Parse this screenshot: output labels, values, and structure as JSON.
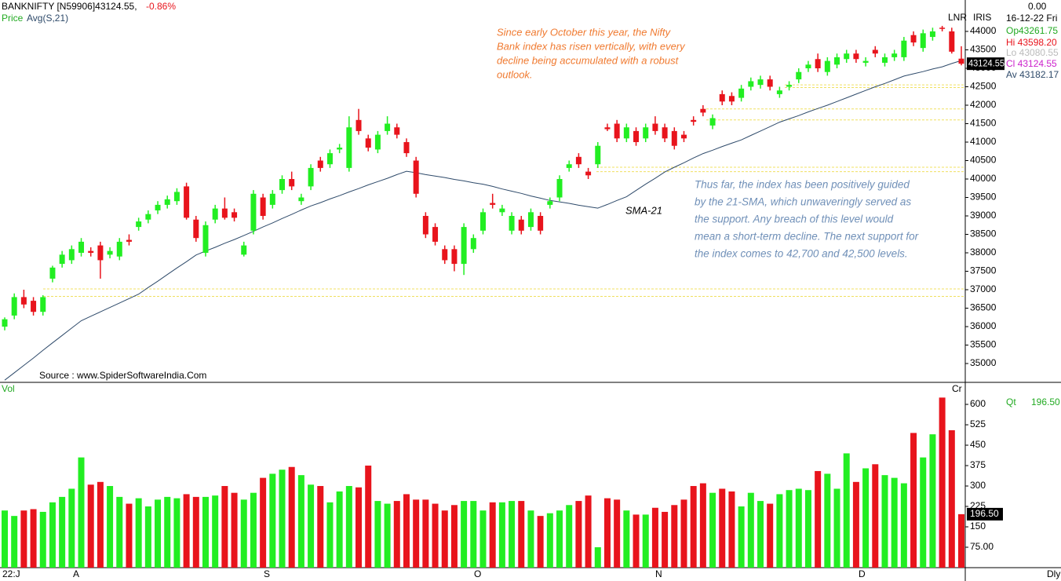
{
  "chart_data": [
    {
      "type": "candlestick",
      "title": "BANKNIFTY [N59906]43124.55,",
      "change": "-0.86%",
      "legend": "Price",
      "sma_label": "Avg(S,21)",
      "sma_name": "SMA-21",
      "source": "Source : www.SpiderSoftwareIndia.Com",
      "marker": "LNR",
      "annotations": [
        [
          "Since early October this year, the Nifty",
          "Bank index has risen vertically, with every",
          "decline being accumulated with a robust",
          "outlook."
        ],
        [
          "Thus far, the index has been positively guided",
          "by the 21-SMA, which unwaveringly served as",
          "the support. Any breach of this level would",
          "mean a short-term decline. The next support for",
          "the index comes to 42,700 and 42,500 levels."
        ]
      ],
      "info": {
        "top": "0.00",
        "name": "IRIS",
        "date": "16-12-22 Fri",
        "op": "Op43261.75",
        "hi": "Hi 43598.20",
        "lo": "Lo 43080.55",
        "cl": "Cl 43124.55",
        "av": "Av 43182.17"
      },
      "x_labels": [
        "22:J",
        "A",
        "S",
        "O",
        "N",
        "D"
      ],
      "period": "Dly",
      "up_color": "#22ee22",
      "down_color": "#e8141c",
      "sma_color": "#2e4a6a",
      "open": [
        36000,
        36300,
        36800,
        36700,
        36400,
        37300,
        37700,
        37800,
        38000,
        38050,
        38200,
        37950,
        37900,
        38350,
        38700,
        38900,
        39150,
        39300,
        39400,
        39800,
        38900,
        38000,
        38900,
        39200,
        39100,
        37950,
        38600,
        39500,
        39300,
        39700,
        40000,
        39400,
        39800,
        40500,
        40400,
        40800,
        40300,
        41600,
        41100,
        40800,
        41300,
        41400,
        41000,
        40500,
        39000,
        38700,
        38100,
        38100,
        37700,
        38100,
        38600,
        39350,
        39100,
        38600,
        38900,
        38700,
        39000,
        39300,
        39500,
        40300,
        40600,
        40200,
        40400,
        41400,
        41500,
        41100,
        41300,
        41100,
        41500,
        41400,
        41300,
        41200,
        41600,
        41900,
        41450,
        42300,
        42250,
        42200,
        42500,
        42550,
        42700,
        42300,
        42500,
        42700,
        43000,
        43250,
        42900,
        43100,
        43250,
        43400,
        43150,
        43500,
        43150,
        43300,
        43300,
        43900,
        43550,
        43850,
        44100,
        44000,
        43261.75
      ],
      "high": [
        36250,
        36900,
        37000,
        36800,
        36850,
        37650,
        38050,
        38200,
        38400,
        38150,
        38300,
        38150,
        38400,
        38500,
        38950,
        39150,
        39400,
        39550,
        39750,
        39900,
        39000,
        38850,
        39300,
        39500,
        39200,
        38300,
        39700,
        39600,
        39700,
        40100,
        40200,
        39600,
        40400,
        40600,
        40800,
        40950,
        41700,
        41900,
        41200,
        41300,
        41700,
        41500,
        41100,
        40600,
        39100,
        38800,
        38200,
        38200,
        38800,
        38500,
        39200,
        39600,
        39300,
        39100,
        39000,
        39200,
        39100,
        39500,
        40100,
        40500,
        40700,
        40300,
        41000,
        41500,
        41600,
        41500,
        41400,
        41500,
        41700,
        41500,
        41400,
        41300,
        41700,
        42000,
        41750,
        42400,
        42350,
        42550,
        42750,
        42800,
        42800,
        42500,
        42650,
        43000,
        43200,
        43400,
        43300,
        43400,
        43500,
        43500,
        43300,
        43600,
        43400,
        43500,
        43850,
        44000,
        44050,
        44100,
        44150,
        44100,
        43598.2
      ],
      "low": [
        35900,
        36200,
        36500,
        36300,
        36300,
        37200,
        37600,
        37700,
        37900,
        37900,
        37300,
        37850,
        37800,
        38200,
        38600,
        38800,
        39050,
        39200,
        39300,
        38900,
        38300,
        37900,
        38800,
        38900,
        38850,
        37900,
        38500,
        38900,
        39200,
        39600,
        39700,
        39300,
        39700,
        40200,
        40300,
        40700,
        40200,
        41200,
        40750,
        40700,
        41200,
        41100,
        40600,
        39500,
        38400,
        38200,
        37700,
        37500,
        37400,
        38000,
        38500,
        39200,
        39000,
        38500,
        38500,
        38600,
        38500,
        39200,
        39400,
        40200,
        40300,
        40000,
        40300,
        41300,
        41000,
        41000,
        40900,
        41000,
        41200,
        41000,
        40800,
        41000,
        41450,
        41700,
        41350,
        42000,
        42000,
        42100,
        42400,
        42450,
        42400,
        42200,
        42400,
        42600,
        42900,
        42900,
        42800,
        43000,
        43150,
        43150,
        43050,
        43300,
        43050,
        43200,
        43200,
        43600,
        43450,
        43750,
        44000,
        43400,
        43080.55
      ],
      "close": [
        36200,
        36800,
        36600,
        36400,
        36800,
        37600,
        37950,
        38100,
        38300,
        38000,
        37800,
        38050,
        38300,
        38300,
        38850,
        39050,
        39300,
        39450,
        39650,
        38950,
        38400,
        38750,
        39200,
        38950,
        38950,
        38200,
        39600,
        39000,
        39600,
        40000,
        39800,
        39500,
        40300,
        40300,
        40700,
        40850,
        41400,
        41300,
        40850,
        41200,
        41500,
        41200,
        40700,
        39600,
        38500,
        38300,
        37800,
        37700,
        38700,
        38400,
        39100,
        39300,
        39200,
        39000,
        38600,
        39100,
        38600,
        39400,
        40000,
        40400,
        40400,
        40100,
        40900,
        41350,
        41100,
        41400,
        41000,
        41400,
        41300,
        41100,
        40900,
        41100,
        41550,
        41800,
        41650,
        42100,
        42100,
        42450,
        42650,
        42700,
        42500,
        42400,
        42550,
        42900,
        43100,
        43000,
        43200,
        43300,
        43400,
        43250,
        43200,
        43400,
        43300,
        43400,
        43750,
        43700,
        43950,
        44000,
        44080,
        43450,
        43124.55
      ],
      "sma": [
        34550,
        34750,
        34950,
        35150,
        35360,
        35560,
        35760,
        35960,
        36160,
        36280,
        36400,
        36520,
        36640,
        36760,
        36880,
        37060,
        37230,
        37410,
        37590,
        37760,
        37940,
        38050,
        38150,
        38260,
        38360,
        38470,
        38580,
        38700,
        38810,
        38930,
        39040,
        39160,
        39270,
        39360,
        39460,
        39550,
        39650,
        39740,
        39840,
        39930,
        40020,
        40120,
        40210,
        40170,
        40120,
        40080,
        40040,
        39990,
        39950,
        39900,
        39860,
        39800,
        39730,
        39670,
        39610,
        39540,
        39480,
        39420,
        39380,
        39340,
        39290,
        39250,
        39210,
        39310,
        39420,
        39520,
        39690,
        39860,
        40020,
        40190,
        40320,
        40440,
        40570,
        40690,
        40780,
        40880,
        40970,
        41060,
        41180,
        41300,
        41420,
        41540,
        41630,
        41720,
        41820,
        41910,
        42000,
        42100,
        42200,
        42300,
        42400,
        42500,
        42590,
        42690,
        42790,
        42850,
        42910,
        42980,
        43040,
        43130,
        43210
      ],
      "support_levels": [
        42550,
        42480,
        41900,
        41600,
        40320,
        40200,
        37020,
        36820
      ],
      "ylim": [
        34532,
        44851
      ],
      "yticks": [
        35000,
        35500,
        36000,
        36500,
        37000,
        37500,
        38000,
        38500,
        39000,
        39500,
        40000,
        40500,
        41000,
        41500,
        42000,
        42500,
        43000,
        43500,
        44000
      ]
    },
    {
      "type": "volume",
      "title": "Vol",
      "marker": "Cr",
      "qt": "Qt",
      "qt_value": "196.50",
      "values": [
        210,
        190,
        210,
        215,
        205,
        240,
        260,
        290,
        405,
        305,
        315,
        300,
        260,
        235,
        255,
        225,
        250,
        260,
        255,
        270,
        260,
        260,
        265,
        300,
        275,
        250,
        275,
        330,
        345,
        360,
        370,
        340,
        305,
        300,
        240,
        280,
        300,
        295,
        375,
        245,
        235,
        245,
        270,
        250,
        250,
        235,
        210,
        230,
        245,
        245,
        210,
        240,
        240,
        245,
        245,
        210,
        190,
        200,
        210,
        230,
        245,
        265,
        75,
        255,
        250,
        210,
        195,
        195,
        220,
        205,
        230,
        250,
        300,
        310,
        275,
        290,
        280,
        225,
        275,
        245,
        235,
        270,
        285,
        290,
        285,
        355,
        345,
        290,
        420,
        315,
        365,
        380,
        340,
        330,
        310,
        495,
        405,
        490,
        625,
        505,
        196.5
      ],
      "ylim": [
        0,
        678
      ],
      "yticks": [
        600,
        525,
        450,
        375,
        300,
        225,
        150,
        {
          "value": 75,
          "label": "75.00"
        }
      ]
    }
  ]
}
